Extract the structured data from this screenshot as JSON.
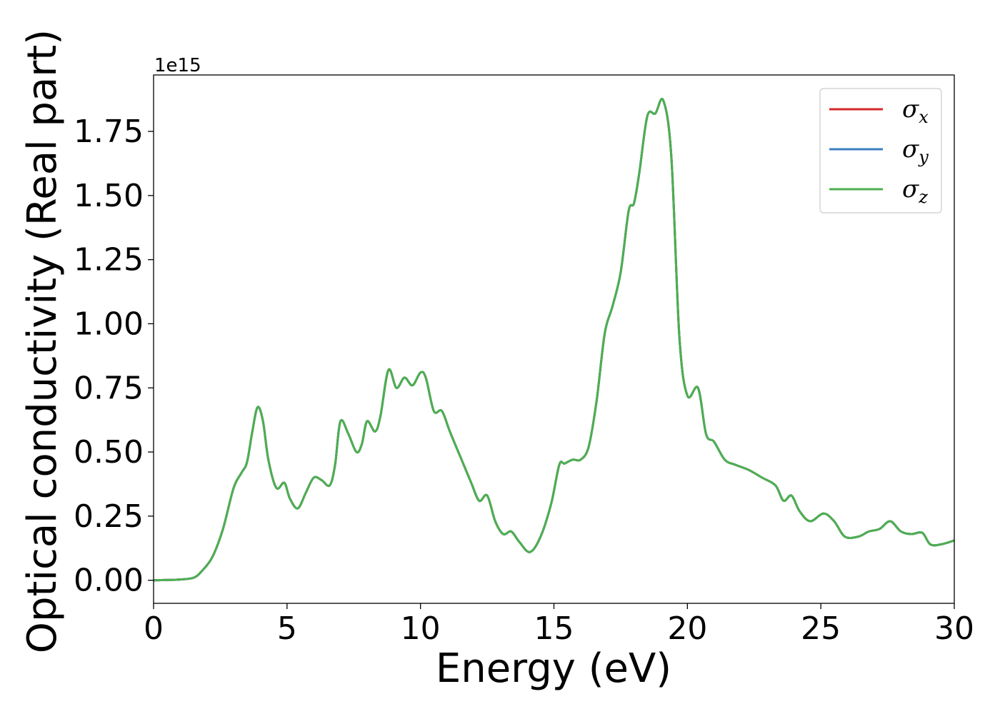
{
  "chart_data": {
    "type": "line",
    "title": "",
    "xlabel": "Energy (eV)",
    "ylabel": "Optical conductivity (Real part)",
    "y_offset_text": "1e15",
    "y_scale_factor": 1000000000000000.0,
    "xlim": [
      0,
      30
    ],
    "ylim": [
      -0.09,
      1.97
    ],
    "x_ticks": [
      0,
      5,
      10,
      15,
      20,
      25,
      30
    ],
    "x_tick_labels": [
      "0",
      "5",
      "10",
      "15",
      "20",
      "25",
      "30"
    ],
    "y_ticks": [
      0.0,
      0.25,
      0.5,
      0.75,
      1.0,
      1.25,
      1.5,
      1.75
    ],
    "y_tick_labels": [
      "0.00",
      "0.25",
      "0.50",
      "0.75",
      "1.00",
      "1.25",
      "1.50",
      "1.75"
    ],
    "grid": false,
    "legend_position": "top-right",
    "series": [
      {
        "name": "σx",
        "base": "σ",
        "sub": "x",
        "color": "#d62728"
      },
      {
        "name": "σy",
        "base": "σ",
        "sub": "y",
        "color": "#3a7fbf"
      },
      {
        "name": "σz",
        "base": "σ",
        "sub": "z",
        "color": "#4caf50"
      }
    ],
    "shared_curve": {
      "x": [
        0,
        0.5,
        1.0,
        1.5,
        1.8,
        2.2,
        2.6,
        3.0,
        3.3,
        3.5,
        3.7,
        3.9,
        4.1,
        4.3,
        4.6,
        4.9,
        5.1,
        5.4,
        5.7,
        6.0,
        6.3,
        6.6,
        6.8,
        7.0,
        7.3,
        7.6,
        7.8,
        8.0,
        8.3,
        8.5,
        8.8,
        9.1,
        9.4,
        9.7,
        10.0,
        10.2,
        10.5,
        10.8,
        11.1,
        11.5,
        11.9,
        12.2,
        12.5,
        12.8,
        13.1,
        13.4,
        13.7,
        14.1,
        14.5,
        14.9,
        15.2,
        15.4,
        15.7,
        16.0,
        16.3,
        16.6,
        16.9,
        17.2,
        17.5,
        17.8,
        18.0,
        18.2,
        18.5,
        18.8,
        19.1,
        19.4,
        19.7,
        20.0,
        20.4,
        20.7,
        21.0,
        21.4,
        21.8,
        22.3,
        22.8,
        23.3,
        23.6,
        23.9,
        24.2,
        24.6,
        25.1,
        25.5,
        25.9,
        26.4,
        26.8,
        27.2,
        27.6,
        28.0,
        28.4,
        28.8,
        29.1,
        29.5,
        30.0
      ],
      "y": [
        0.0,
        0.001,
        0.003,
        0.01,
        0.035,
        0.09,
        0.2,
        0.36,
        0.42,
        0.46,
        0.58,
        0.675,
        0.62,
        0.47,
        0.36,
        0.38,
        0.32,
        0.28,
        0.34,
        0.4,
        0.39,
        0.37,
        0.45,
        0.62,
        0.57,
        0.5,
        0.53,
        0.62,
        0.58,
        0.64,
        0.82,
        0.75,
        0.79,
        0.76,
        0.81,
        0.79,
        0.66,
        0.66,
        0.58,
        0.48,
        0.38,
        0.31,
        0.33,
        0.23,
        0.18,
        0.19,
        0.15,
        0.11,
        0.17,
        0.3,
        0.45,
        0.455,
        0.47,
        0.47,
        0.52,
        0.7,
        0.96,
        1.07,
        1.2,
        1.44,
        1.47,
        1.59,
        1.81,
        1.82,
        1.87,
        1.65,
        0.95,
        0.72,
        0.75,
        0.57,
        0.54,
        0.47,
        0.45,
        0.43,
        0.4,
        0.37,
        0.31,
        0.33,
        0.27,
        0.23,
        0.26,
        0.23,
        0.17,
        0.17,
        0.19,
        0.2,
        0.23,
        0.19,
        0.18,
        0.185,
        0.14,
        0.14,
        0.155
      ]
    }
  }
}
